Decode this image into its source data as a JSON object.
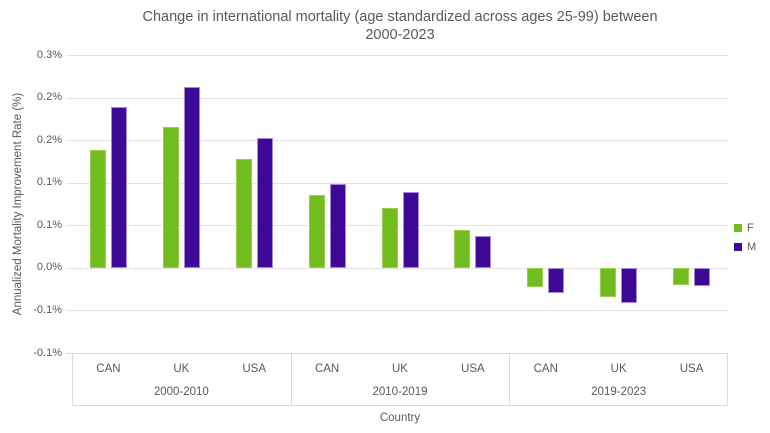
{
  "title": {
    "line1": "Change in international mortality (age standardized across ages 25-99) between",
    "line2": "2000-2023"
  },
  "y_axis": {
    "title": "Annualized Mortality Improvement Rate (%)",
    "tick_labels": [
      "0.3%",
      "0.2%",
      "0.2%",
      "0.1%",
      "0.1%",
      "0.0%",
      "-0.1%",
      "-0.1%"
    ]
  },
  "x_axis": {
    "title": "Country",
    "group_labels": [
      "2000-2010",
      "2010-2019",
      "2019-2023"
    ],
    "country_labels": [
      "CAN",
      "UK",
      "USA"
    ]
  },
  "legend": {
    "items": [
      {
        "label": "F",
        "color": "#71BC1F"
      },
      {
        "label": "M",
        "color": "#3D0996"
      }
    ]
  },
  "colors": {
    "female_bar": "#71BC1F",
    "female_bar_border": "#9BCE4E",
    "male_bar": "#3D0996",
    "male_bar_border": "#A58BD6",
    "gridline": "#E4E4E4",
    "axis_line": "#D9D9D9",
    "text": "#595959"
  },
  "chart_data": {
    "type": "bar",
    "title": "Change in international mortality (age standardized across ages 25-99) between 2000-2023",
    "xlabel": "Country",
    "ylabel": "Annualized Mortality Improvement Rate (%)",
    "group_labels": [
      "2000-2010",
      "2010-2019",
      "2019-2023"
    ],
    "categories": [
      "CAN",
      "UK",
      "USA",
      "CAN",
      "UK",
      "USA",
      "CAN",
      "UK",
      "USA"
    ],
    "series": [
      {
        "name": "F",
        "color": "#71BC1F",
        "values": [
          0.138,
          0.165,
          0.128,
          0.085,
          0.07,
          0.045,
          -0.023,
          -0.034,
          -0.02
        ]
      },
      {
        "name": "M",
        "color": "#3D0996",
        "values": [
          0.189,
          0.212,
          0.153,
          0.099,
          0.089,
          0.037,
          -0.03,
          -0.041,
          -0.021
        ]
      }
    ],
    "ylim": [
      -0.1,
      0.25
    ],
    "ytick_values": [
      0.25,
      0.2,
      0.15,
      0.1,
      0.05,
      0.0,
      -0.05,
      -0.1
    ],
    "ytick_display": [
      "0.3%",
      "0.2%",
      "0.2%",
      "0.1%",
      "0.1%",
      "0.0%",
      "-0.1%",
      "-0.1%"
    ],
    "units": "percent",
    "grid": true,
    "legend_position": "right"
  }
}
